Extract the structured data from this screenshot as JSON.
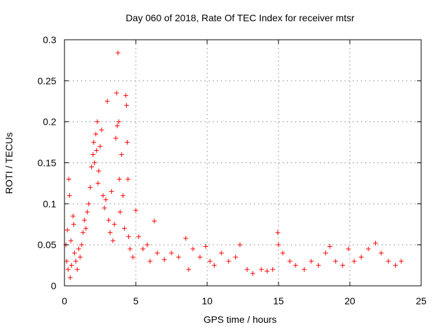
{
  "chart_data": {
    "type": "scatter",
    "title": "Day 060 of 2018, Rate Of TEC Index for receiver mtsr",
    "xlabel": "GPS time / hours",
    "ylabel": "ROTI / TECUs",
    "xlim": [
      0,
      25
    ],
    "ylim": [
      0,
      0.3
    ],
    "xticks": [
      0,
      5,
      10,
      15,
      20,
      25
    ],
    "yticks": [
      0,
      0.05,
      0.1,
      0.15,
      0.2,
      0.25,
      0.3
    ],
    "xtick_labels": [
      "0",
      "5",
      "10",
      "15",
      "20",
      "25"
    ],
    "ytick_labels": [
      "0",
      "0.05",
      "0.1",
      "0.15",
      "0.2",
      "0.25",
      "0.3"
    ],
    "grid": true,
    "marker": "+",
    "color": "#ff0000",
    "series": [
      {
        "points": [
          [
            0.1,
            0.05
          ],
          [
            0.15,
            0.03
          ],
          [
            0.2,
            0.068
          ],
          [
            0.25,
            0.02
          ],
          [
            0.3,
            0.13
          ],
          [
            0.35,
            0.11
          ],
          [
            0.4,
            0.01
          ],
          [
            0.45,
            0.055
          ],
          [
            0.5,
            0.025
          ],
          [
            0.6,
            0.085
          ],
          [
            0.65,
            0.075
          ],
          [
            0.7,
            0.04
          ],
          [
            0.8,
            0.03
          ],
          [
            0.9,
            0.02
          ],
          [
            1.0,
            0.045
          ],
          [
            1.1,
            0.035
          ],
          [
            1.2,
            0.05
          ],
          [
            1.3,
            0.065
          ],
          [
            1.4,
            0.08
          ],
          [
            1.5,
            0.07
          ],
          [
            1.6,
            0.09
          ],
          [
            1.7,
            0.1
          ],
          [
            1.8,
            0.12
          ],
          [
            1.9,
            0.145
          ],
          [
            2.0,
            0.16
          ],
          [
            2.05,
            0.175
          ],
          [
            2.1,
            0.15
          ],
          [
            2.2,
            0.185
          ],
          [
            2.25,
            0.165
          ],
          [
            2.3,
            0.2
          ],
          [
            2.35,
            0.125
          ],
          [
            2.4,
            0.14
          ],
          [
            2.5,
            0.17
          ],
          [
            2.6,
            0.19
          ],
          [
            2.7,
            0.11
          ],
          [
            2.8,
            0.095
          ],
          [
            2.9,
            0.105
          ],
          [
            3.0,
            0.225
          ],
          [
            3.1,
            0.08
          ],
          [
            3.2,
            0.065
          ],
          [
            3.3,
            0.115
          ],
          [
            3.4,
            0.055
          ],
          [
            3.5,
            0.075
          ],
          [
            3.6,
            0.18
          ],
          [
            3.65,
            0.235
          ],
          [
            3.7,
            0.195
          ],
          [
            3.75,
            0.284
          ],
          [
            3.8,
            0.2
          ],
          [
            3.85,
            0.13
          ],
          [
            3.9,
            0.09
          ],
          [
            4.0,
            0.16
          ],
          [
            4.1,
            0.11
          ],
          [
            4.2,
            0.07
          ],
          [
            4.3,
            0.232
          ],
          [
            4.35,
            0.22
          ],
          [
            4.4,
            0.175
          ],
          [
            4.45,
            0.13
          ],
          [
            4.5,
            0.06
          ],
          [
            4.6,
            0.045
          ],
          [
            4.8,
            0.035
          ],
          [
            5.0,
            0.092
          ],
          [
            5.2,
            0.06
          ],
          [
            5.5,
            0.045
          ],
          [
            5.8,
            0.05
          ],
          [
            6.0,
            0.03
          ],
          [
            6.3,
            0.079
          ],
          [
            6.5,
            0.04
          ],
          [
            7.0,
            0.032
          ],
          [
            7.5,
            0.04
          ],
          [
            8.0,
            0.035
          ],
          [
            8.5,
            0.058
          ],
          [
            8.7,
            0.02
          ],
          [
            9.0,
            0.045
          ],
          [
            9.5,
            0.035
          ],
          [
            9.9,
            0.048
          ],
          [
            10.2,
            0.03
          ],
          [
            10.5,
            0.025
          ],
          [
            11.0,
            0.04
          ],
          [
            11.5,
            0.03
          ],
          [
            12.0,
            0.035
          ],
          [
            12.3,
            0.05
          ],
          [
            12.8,
            0.02
          ],
          [
            13.2,
            0.015
          ],
          [
            13.8,
            0.02
          ],
          [
            14.2,
            0.018
          ],
          [
            14.6,
            0.02
          ],
          [
            14.95,
            0.065
          ],
          [
            15.0,
            0.05
          ],
          [
            15.3,
            0.04
          ],
          [
            15.8,
            0.03
          ],
          [
            16.2,
            0.025
          ],
          [
            16.8,
            0.02
          ],
          [
            17.3,
            0.03
          ],
          [
            17.8,
            0.025
          ],
          [
            18.3,
            0.04
          ],
          [
            18.6,
            0.048
          ],
          [
            19.0,
            0.03
          ],
          [
            19.5,
            0.025
          ],
          [
            19.9,
            0.045
          ],
          [
            20.3,
            0.03
          ],
          [
            20.8,
            0.035
          ],
          [
            21.3,
            0.045
          ],
          [
            21.8,
            0.052
          ],
          [
            22.2,
            0.04
          ],
          [
            22.7,
            0.03
          ],
          [
            23.2,
            0.025
          ],
          [
            23.6,
            0.03
          ]
        ]
      }
    ]
  }
}
